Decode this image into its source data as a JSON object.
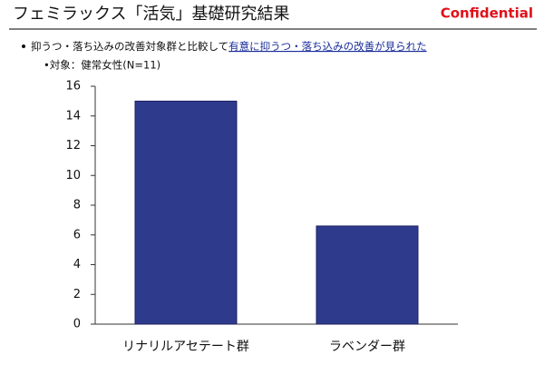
{
  "header": {
    "title": "フェミラックス「活気」基礎研究結果",
    "badge": "Confidential",
    "note": "抑うつ・落ち込みの改善対象群と比較して",
    "note_highlight": "有意に抑うつ・落ち込みの改善が見られた",
    "subnote": "•対象：健常女性(N=11)"
  },
  "chart_data": {
    "type": "bar",
    "categories": [
      "リナリルアセテート群",
      "ラベンダー群"
    ],
    "values": [
      15,
      6.6
    ],
    "color": "#2e3a8c",
    "ylim": [
      0,
      16
    ],
    "yticks": [
      0,
      2,
      4,
      6,
      8,
      10,
      12,
      14,
      16
    ],
    "grid": false
  }
}
